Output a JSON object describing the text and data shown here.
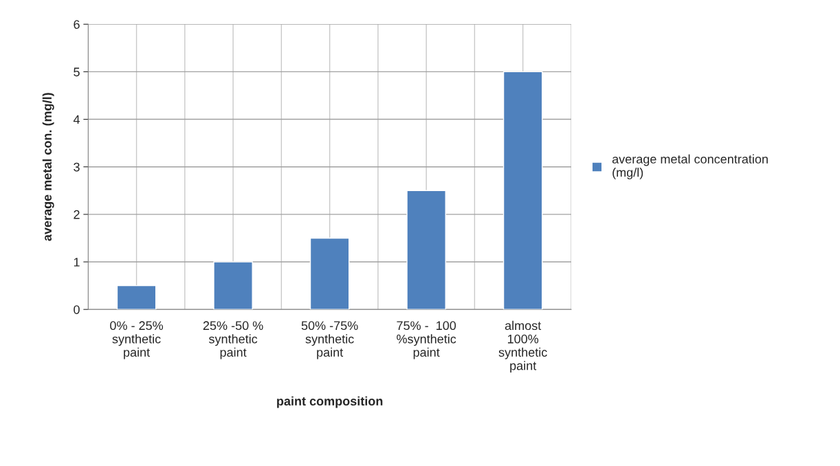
{
  "chart_data": {
    "type": "bar",
    "xlabel": "paint composition",
    "ylabel": "average metal con. (mg/l)",
    "categories": [
      "0% - 25%\nsynthetic\npaint",
      "25% -50 %\nsynthetic\npaint",
      "50% -75%\nsynthetic\npaint",
      "75% -  100\n%synthetic\npaint",
      "almost\n100%\nsynthetic\npaint"
    ],
    "series": [
      {
        "name": "average metal concentration\n(mg/l)",
        "color": "#4f81bd",
        "values": [
          0.5,
          1,
          1.5,
          2.5,
          5
        ]
      }
    ],
    "ylim": [
      0,
      6
    ],
    "yticks": [
      0,
      1,
      2,
      3,
      4,
      5,
      6
    ],
    "grid": true,
    "legend": "right"
  }
}
